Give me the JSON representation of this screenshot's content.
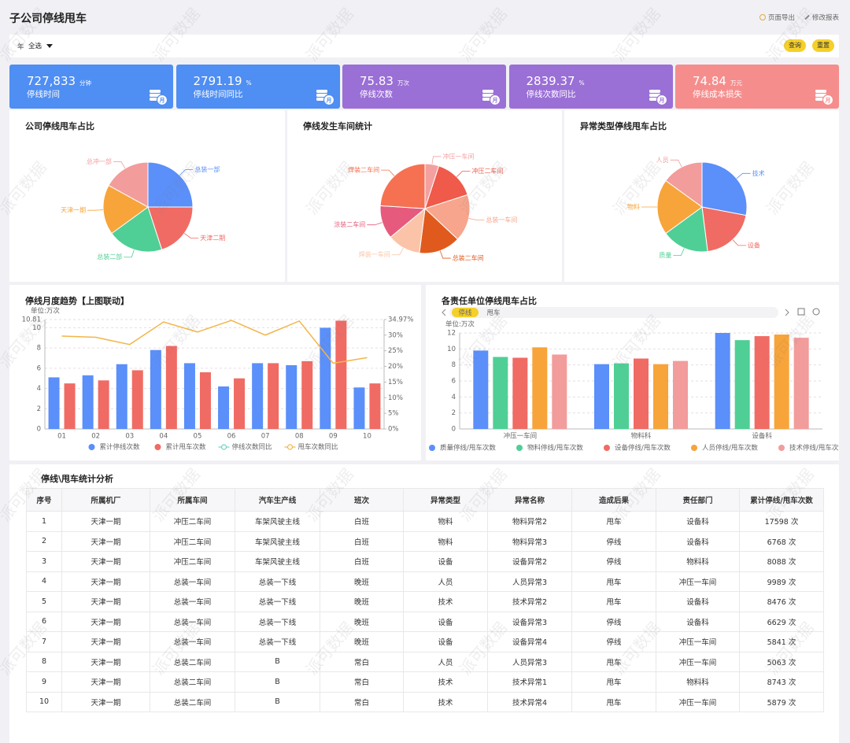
{
  "header": {
    "title": "子公司停线甩车",
    "actions": [
      "页面导出",
      "修改报表"
    ]
  },
  "filter": {
    "label": "年",
    "select": "全选",
    "buttons": [
      "查询",
      "重置"
    ]
  },
  "watermark": "派可数据",
  "kpis": {
    "icon_label": "月",
    "items": [
      {
        "value": "727,833",
        "unit": "分钟",
        "label": "停线时间",
        "color": "#4f8ef2"
      },
      {
        "value": "2791.19",
        "unit": "%",
        "label": "停线时间同比",
        "color": "#4f8ef2"
      },
      {
        "value": "75.83",
        "unit": "万次",
        "label": "停线次数",
        "color": "#9a6fd6"
      },
      {
        "value": "2839.37",
        "unit": "%",
        "label": "停线次数同比",
        "color": "#9a6fd6"
      },
      {
        "value": "74.84",
        "unit": "万元",
        "label": "停线成本损失",
        "color": "#f68d8d"
      }
    ]
  },
  "chart_data": [
    {
      "type": "pie",
      "title": "公司停线甩车占比",
      "categories": [
        "总装一部",
        "天津二期",
        "总装二部",
        "天津一期",
        "总冲一部"
      ],
      "values": [
        25,
        20,
        20,
        18,
        17
      ],
      "colors": [
        "#5b8ff9",
        "#f06b64",
        "#4fcf95",
        "#f7a43a",
        "#f29c9c"
      ]
    },
    {
      "type": "pie",
      "title": "停线发生车间统计",
      "categories": [
        "冲压一车间",
        "冲压二车间",
        "总装一车间",
        "总装二车间",
        "焊装一车间",
        "涂装二车间",
        "焊装二车间"
      ],
      "values": [
        5,
        15,
        17,
        15,
        12,
        12,
        24
      ],
      "colors": [
        "#f4a0a0",
        "#ef5a4a",
        "#f7a58c",
        "#e05a1e",
        "#fbc4a8",
        "#e65b7d",
        "#f67152"
      ]
    },
    {
      "type": "pie",
      "title": "异常类型停线甩车占比",
      "categories": [
        "技术",
        "设备",
        "质量",
        "物料",
        "人员"
      ],
      "values": [
        28,
        20,
        17,
        20,
        15
      ],
      "colors": [
        "#5b8ff9",
        "#f06b64",
        "#4fcf95",
        "#f7a43a",
        "#f29c9c"
      ]
    },
    {
      "type": "bar",
      "title": "停线月度趋势【上图联动】",
      "unit": "单位:万次",
      "categories": [
        "01",
        "02",
        "03",
        "04",
        "05",
        "06",
        "07",
        "08",
        "09",
        "10"
      ],
      "ylim": [
        0,
        10.81
      ],
      "yticks": [
        0,
        2,
        4,
        6,
        8,
        10,
        10.81
      ],
      "y2lim": [
        0,
        34.97
      ],
      "y2ticks": [
        {
          "value": 0,
          "label": "0%"
        },
        {
          "value": 5,
          "label": "5%"
        },
        {
          "value": 10,
          "label": "10%"
        },
        {
          "value": 15,
          "label": "15%"
        },
        {
          "value": 20,
          "label": "20%"
        },
        {
          "value": 25,
          "label": "25%"
        },
        {
          "value": 30,
          "label": "30%"
        },
        {
          "value": 34.97,
          "label": "34.97%"
        }
      ],
      "grid": true,
      "series": [
        {
          "name": "累计停线次数",
          "color": "#5b8ff9",
          "values": [
            5.1,
            5.3,
            6.4,
            7.8,
            6.5,
            4.2,
            6.5,
            6.3,
            10.0,
            4.1
          ]
        },
        {
          "name": "累计甩车次数",
          "color": "#f06b64",
          "values": [
            4.5,
            4.8,
            5.8,
            8.2,
            5.6,
            5.0,
            6.5,
            6.7,
            10.7,
            4.5
          ]
        },
        {
          "name": "停线次数同比",
          "color": "#6fd3c4",
          "type": "line",
          "axis": "y2",
          "values": [
            null,
            null,
            null,
            null,
            null,
            null,
            null,
            null,
            null,
            null
          ]
        },
        {
          "name": "甩车次数同比",
          "color": "#f3b54a",
          "type": "line",
          "axis": "y2",
          "values": [
            29.7,
            29.3,
            27,
            34.2,
            31,
            34.7,
            30,
            34.5,
            21,
            22.8
          ]
        }
      ]
    },
    {
      "type": "bar",
      "title": "各责任单位停线甩车占比",
      "unit": "单位:万次",
      "tabs": [
        "停线",
        "甩车"
      ],
      "categories": [
        "冲压一车间",
        "物料科",
        "设备科"
      ],
      "ylim": [
        0,
        12
      ],
      "yticks": [
        0,
        2,
        4,
        6,
        8,
        10,
        12
      ],
      "grid": true,
      "series": [
        {
          "name": "质量停线/甩车次数",
          "color": "#5b8ff9",
          "values": [
            9.8,
            8.1,
            12.0
          ]
        },
        {
          "name": "物料停线/甩车次数",
          "color": "#4fcf95",
          "values": [
            9.0,
            8.2,
            11.1
          ]
        },
        {
          "name": "设备停线/甩车次数",
          "color": "#f06b64",
          "values": [
            8.9,
            8.8,
            11.6
          ]
        },
        {
          "name": "人员停线/甩车次数",
          "color": "#f7a43a",
          "values": [
            10.2,
            8.1,
            11.8
          ]
        },
        {
          "name": "技术停线/甩车次数",
          "color": "#f29c9c",
          "values": [
            9.3,
            8.5,
            11.4
          ]
        }
      ]
    }
  ],
  "table": {
    "title": "停线\\甩车统计分析",
    "columns": [
      "序号",
      "所属机厂",
      "所属车间",
      "汽车生产线",
      "班次",
      "异常类型",
      "异常名称",
      "造成后果",
      "责任部门",
      "累计停线/甩车次数"
    ],
    "rows": [
      [
        "1",
        "天津一期",
        "冲压二车间",
        "车架风驶主线",
        "白班",
        "物料",
        "物料异常2",
        "甩车",
        "设备科",
        "17598 次"
      ],
      [
        "2",
        "天津一期",
        "冲压二车间",
        "车架风驶主线",
        "白班",
        "物料",
        "物料异常3",
        "停线",
        "设备科",
        "6768 次"
      ],
      [
        "3",
        "天津一期",
        "冲压二车间",
        "车架风驶主线",
        "白班",
        "设备",
        "设备异常2",
        "停线",
        "物料科",
        "8088 次"
      ],
      [
        "4",
        "天津一期",
        "总装一车间",
        "总装一下线",
        "晚班",
        "人员",
        "人员异常3",
        "甩车",
        "冲压一车间",
        "9989 次"
      ],
      [
        "5",
        "天津一期",
        "总装一车间",
        "总装一下线",
        "晚班",
        "技术",
        "技术异常2",
        "甩车",
        "设备科",
        "8476 次"
      ],
      [
        "6",
        "天津一期",
        "总装一车间",
        "总装一下线",
        "晚班",
        "设备",
        "设备异常3",
        "停线",
        "设备科",
        "6629 次"
      ],
      [
        "7",
        "天津一期",
        "总装一车间",
        "总装一下线",
        "晚班",
        "设备",
        "设备异常4",
        "停线",
        "冲压一车间",
        "5841 次"
      ],
      [
        "8",
        "天津一期",
        "总装二车间",
        "B",
        "常白",
        "人员",
        "人员异常3",
        "甩车",
        "冲压一车间",
        "5063 次"
      ],
      [
        "9",
        "天津一期",
        "总装二车间",
        "B",
        "常白",
        "技术",
        "技术异常1",
        "甩车",
        "物料科",
        "8743 次"
      ],
      [
        "10",
        "天津一期",
        "总装二车间",
        "B",
        "常白",
        "技术",
        "技术异常4",
        "甩车",
        "冲压一车间",
        "5879 次"
      ]
    ]
  }
}
